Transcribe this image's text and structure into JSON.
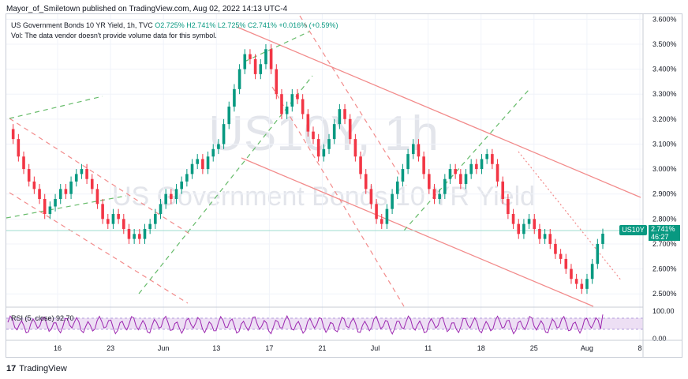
{
  "header": {
    "publisher_line": "Mayor_of_Smiletown published on TradingView.com, Aug 02, 2022 14:13 UTC-4"
  },
  "legend": {
    "symbol_line": "US Government Bonds 10 YR Yield, 1h, TVC",
    "ohlc": "O2.725% H2.741% L2.725% C2.741% +0.016% (+0.59%)",
    "volume_note": "Vol: The data vendor doesn't provide volume data for this symbol."
  },
  "watermark": {
    "big": "US10Y, 1h",
    "small": "US Government Bonds 10 YR Yield"
  },
  "price_tag": {
    "symbol": "US10Y",
    "value": "2.741%",
    "countdown": "46:27"
  },
  "rsi_legend": "RSI (5, close) 92.70",
  "footer": {
    "brand": "TradingView"
  },
  "colors": {
    "up": "#089981",
    "down": "#f23645",
    "channel": "#f28b8b",
    "green_dash": "#4caf50",
    "rsi": "#9c27b0",
    "rsi_band": "#e6d2f0"
  },
  "chart_data": {
    "type": "line",
    "y_axis_unit": "%",
    "y_ticks": [
      "3.600%",
      "3.500%",
      "3.400%",
      "3.300%",
      "3.200%",
      "3.100%",
      "3.000%",
      "2.900%",
      "2.800%",
      "2.700%",
      "2.600%",
      "2.500%"
    ],
    "ylim": [
      2.45,
      3.62
    ],
    "x_ticks": [
      "16",
      "23",
      "Jun",
      "13",
      "17",
      "21",
      "Jul",
      "11",
      "18",
      "25",
      "Aug",
      "8"
    ],
    "series": [
      {
        "values": [
          3.16,
          3.12,
          3.05,
          3.0,
          2.95,
          2.92,
          2.88,
          2.82,
          2.85,
          2.88,
          2.92,
          2.9,
          2.95,
          2.98,
          3.0,
          2.96,
          2.92,
          2.86,
          2.8,
          2.78,
          2.82,
          2.8,
          2.76,
          2.72,
          2.74,
          2.72,
          2.76,
          2.78,
          2.82,
          2.86,
          2.9,
          2.88,
          2.92,
          2.95,
          2.98,
          3.02,
          3.04,
          3.0,
          3.05,
          3.08,
          3.1,
          3.18,
          3.25,
          3.32,
          3.4,
          3.46,
          3.44,
          3.38,
          3.42,
          3.48,
          3.4,
          3.3,
          3.22,
          3.25,
          3.3,
          3.28,
          3.22,
          3.15,
          3.12,
          3.05,
          3.08,
          3.12,
          3.18,
          3.24,
          3.2,
          3.12,
          3.05,
          2.98,
          2.92,
          2.86,
          2.8,
          2.78,
          2.84,
          2.9,
          2.95,
          3.0,
          3.06,
          3.1,
          3.05,
          2.98,
          2.92,
          2.88,
          2.9,
          2.96,
          3.0,
          2.98,
          2.94,
          2.98,
          3.02,
          3.0,
          3.04,
          3.06,
          3.02,
          2.95,
          2.88,
          2.82,
          2.78,
          2.74,
          2.78,
          2.8,
          2.76,
          2.72,
          2.74,
          2.7,
          2.66,
          2.64,
          2.6,
          2.56,
          2.54,
          2.52,
          2.56,
          2.62,
          2.7,
          2.741
        ]
      }
    ],
    "rsi": {
      "levels": [
        30,
        70
      ],
      "axis_ticks": [
        "100.00",
        "0.00"
      ],
      "last": 92.7
    }
  }
}
